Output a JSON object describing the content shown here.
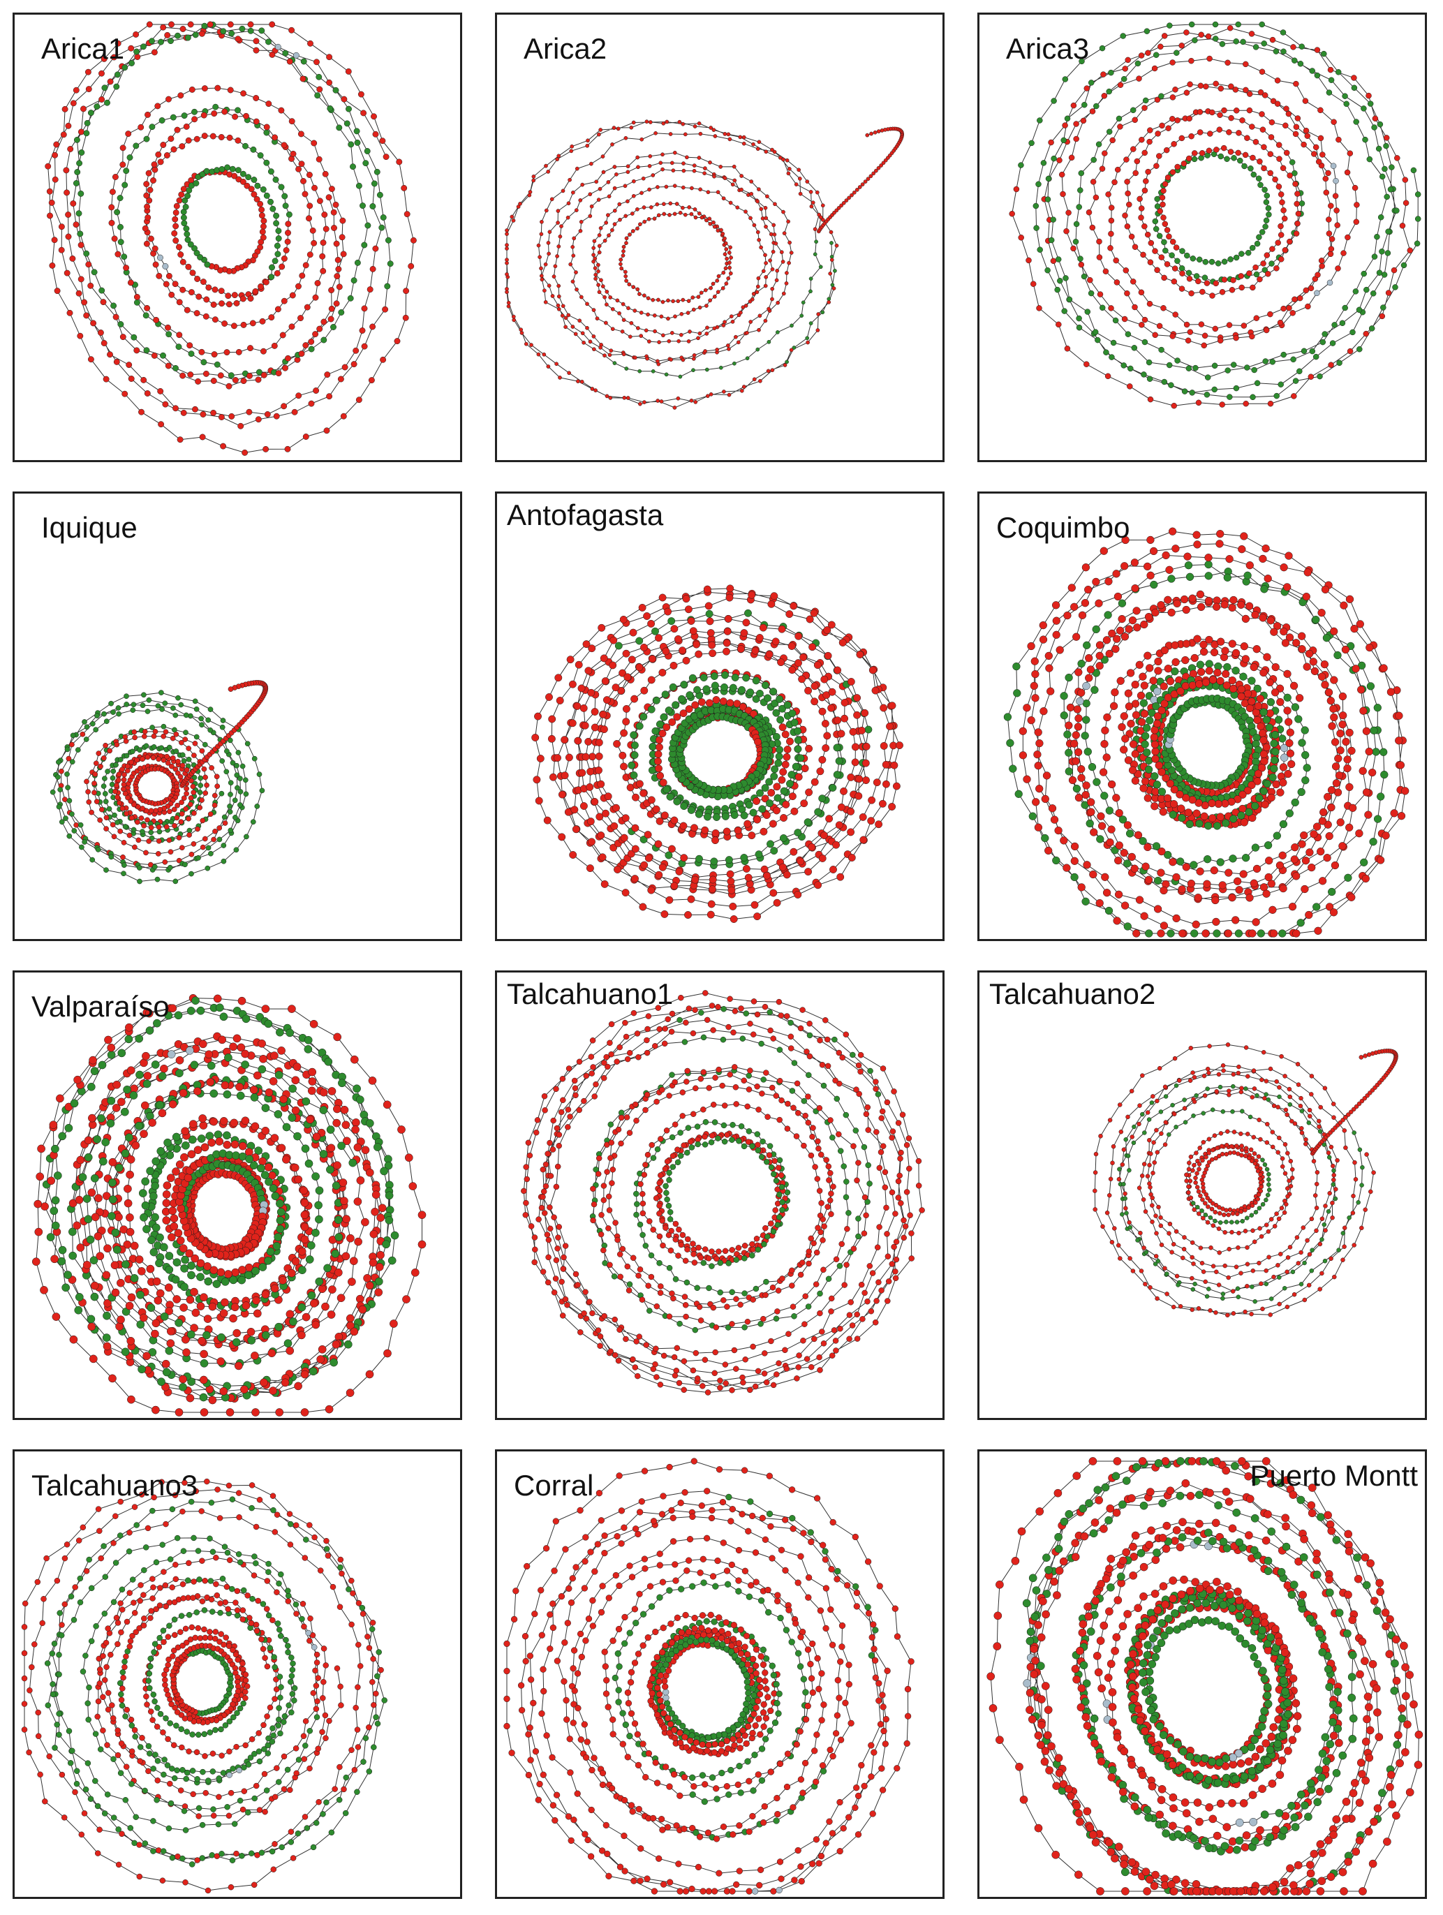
{
  "colors": {
    "red_node": "#e0231b",
    "green_node": "#2e8b2e",
    "gray_node": "#a9bccb",
    "edge": "#333333"
  },
  "panels": [
    {
      "label": "Arica1"
    },
    {
      "label": "Arica2"
    },
    {
      "label": "Arica3"
    },
    {
      "label": "Iquique"
    },
    {
      "label": "Antofagasta"
    },
    {
      "label": "Coquimbo"
    },
    {
      "label": "Valparaíso"
    },
    {
      "label": "Talcahuano1"
    },
    {
      "label": "Talcahuano2"
    },
    {
      "label": "Talcahuano3"
    },
    {
      "label": "Corral"
    },
    {
      "label": "Puerto Montt"
    }
  ]
}
